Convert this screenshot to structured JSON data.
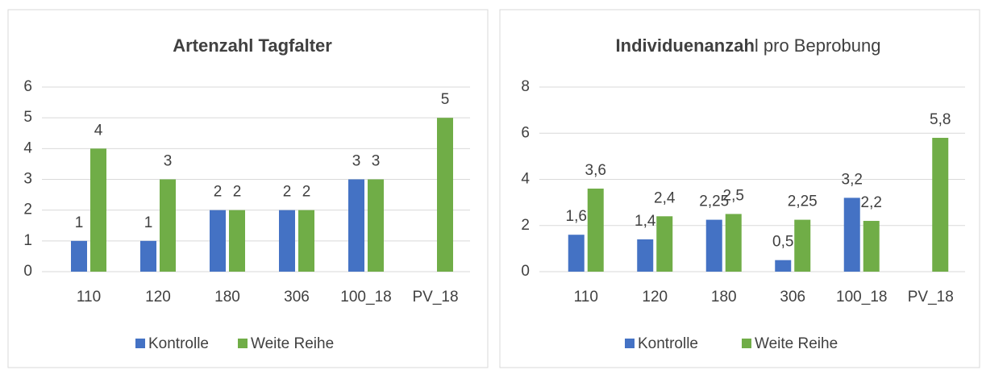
{
  "chart_data": [
    {
      "type": "bar",
      "title": [
        "Artenzahl Tagfalter"
      ],
      "title_bold": [
        true
      ],
      "categories": [
        "110",
        "120",
        "180",
        "306",
        "100_18",
        "PV_18"
      ],
      "series": [
        {
          "name": "Kontrolle",
          "color": "#4472c4",
          "values": [
            1,
            1,
            2,
            2,
            3,
            null
          ]
        },
        {
          "name": "Weite Reihe",
          "color": "#70ad47",
          "values": [
            4,
            3,
            2,
            2,
            3,
            5
          ]
        }
      ],
      "ylim": [
        0,
        6
      ],
      "yticks": [
        0,
        1,
        2,
        3,
        4,
        5,
        6
      ],
      "grid": true,
      "legend": "bottom"
    },
    {
      "type": "bar",
      "title": [
        "Individuenanzah",
        "l pro Beprobung"
      ],
      "title_bold": [
        true,
        false
      ],
      "categories": [
        "110",
        "120",
        "180",
        "306",
        "100_18",
        "PV_18"
      ],
      "series": [
        {
          "name": "Kontrolle",
          "color": "#4472c4",
          "values": [
            1.6,
            1.4,
            2.25,
            0.5,
            3.2,
            null
          ],
          "value_labels": [
            "1,6",
            "1,4",
            "2,25",
            "0,5",
            "3,2",
            null
          ]
        },
        {
          "name": "Weite Reihe",
          "color": "#70ad47",
          "values": [
            3.6,
            2.4,
            2.5,
            2.25,
            2.2,
            5.8
          ],
          "value_labels": [
            "3,6",
            "2,4",
            "2,5",
            "2,25",
            "2,2",
            "5,8"
          ]
        }
      ],
      "ylim": [
        0,
        8
      ],
      "yticks": [
        0,
        2,
        4,
        6,
        8
      ],
      "grid": true,
      "legend": "bottom"
    }
  ]
}
